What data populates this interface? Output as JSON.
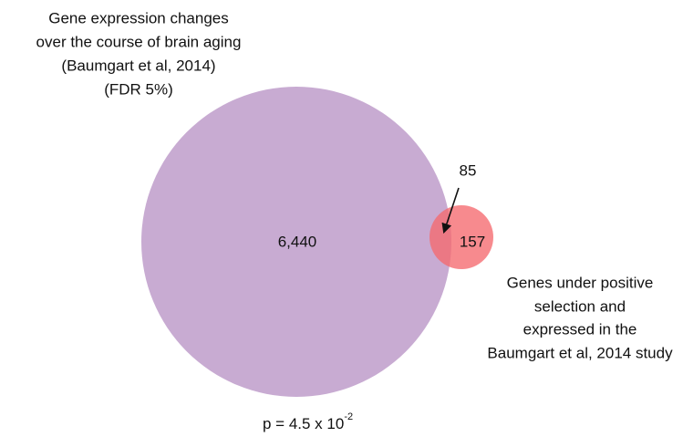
{
  "sets": [
    {
      "label_lines": [
        "Gene expression changes",
        "over the course of brain aging",
        "(Baumgart et al, 2014)",
        "(FDR 5%)"
      ],
      "count": "6,440"
    },
    {
      "label_lines": [
        "Genes under positive",
        "selection and",
        "expressed in the",
        "Baumgart et al, 2014 study"
      ],
      "count": "157"
    }
  ],
  "intersection": "85",
  "p_value": {
    "text": "p = 4.5 x 10",
    "exponent": "-2"
  }
}
